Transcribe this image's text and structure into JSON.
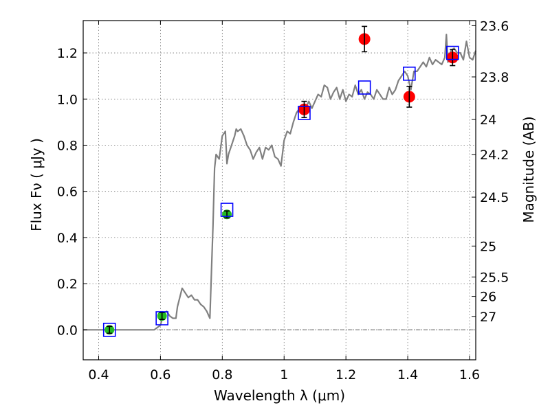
{
  "chart_data": {
    "type": "scatter",
    "xlabel": "Wavelength  λ (μm)",
    "ylabel": "Flux  Fν  ( μJy )",
    "y2label": "Magnitude (AB)",
    "xlim": [
      0.35,
      1.62
    ],
    "ylim": [
      -0.13,
      1.34
    ],
    "grid": true,
    "x_ticks": [
      {
        "value": 0.4,
        "label": "0.4"
      },
      {
        "value": 0.6,
        "label": "0.6"
      },
      {
        "value": 0.8,
        "label": "0.8"
      },
      {
        "value": 1.0,
        "label": "1"
      },
      {
        "value": 1.2,
        "label": "1.2"
      },
      {
        "value": 1.4,
        "label": "1.4"
      },
      {
        "value": 1.6,
        "label": "1.6"
      }
    ],
    "y_ticks": [
      {
        "value": 0.0,
        "label": "0.0"
      },
      {
        "value": 0.2,
        "label": "0.2"
      },
      {
        "value": 0.4,
        "label": "0.4"
      },
      {
        "value": 0.6,
        "label": "0.6"
      },
      {
        "value": 0.8,
        "label": "0.8"
      },
      {
        "value": 1.0,
        "label": "1.0"
      },
      {
        "value": 1.2,
        "label": "1.2"
      }
    ],
    "magnitude_ticks": [
      {
        "flux": 1.318,
        "label": "23.6"
      },
      {
        "flux": 1.096,
        "label": "23.8"
      },
      {
        "flux": 0.912,
        "label": "24"
      },
      {
        "flux": 0.759,
        "label": "24.2"
      },
      {
        "flux": 0.575,
        "label": "24.5"
      },
      {
        "flux": 0.363,
        "label": "25"
      },
      {
        "flux": 0.229,
        "label": "25.5"
      },
      {
        "flux": 0.145,
        "label": "26"
      },
      {
        "flux": 0.058,
        "label": "27"
      }
    ],
    "zero_line": 0.0,
    "colors": {
      "template": "#808080",
      "model_box": "#0000ff",
      "optical": "#22bb22",
      "infrared": "#ff0000",
      "errorbar": "#000000",
      "zero_line": "#555555"
    },
    "series": [
      {
        "kind": "template",
        "x": [
          0.35,
          0.58,
          0.6,
          0.61,
          0.62,
          0.63,
          0.64,
          0.65,
          0.655,
          0.67,
          0.68,
          0.69,
          0.7,
          0.71,
          0.72,
          0.73,
          0.74,
          0.75,
          0.76,
          0.77,
          0.775,
          0.78,
          0.79,
          0.8,
          0.81,
          0.815,
          0.82,
          0.83,
          0.84,
          0.845,
          0.85,
          0.86,
          0.87,
          0.88,
          0.89,
          0.9,
          0.91,
          0.92,
          0.93,
          0.94,
          0.95,
          0.96,
          0.97,
          0.98,
          0.99,
          1.0,
          1.01,
          1.02,
          1.03,
          1.04,
          1.05,
          1.06,
          1.07,
          1.08,
          1.09,
          1.1,
          1.11,
          1.12,
          1.13,
          1.14,
          1.15,
          1.16,
          1.17,
          1.18,
          1.19,
          1.2,
          1.21,
          1.22,
          1.23,
          1.24,
          1.25,
          1.26,
          1.27,
          1.28,
          1.29,
          1.3,
          1.31,
          1.32,
          1.33,
          1.34,
          1.35,
          1.36,
          1.37,
          1.38,
          1.39,
          1.4,
          1.41,
          1.42,
          1.43,
          1.44,
          1.45,
          1.46,
          1.47,
          1.48,
          1.49,
          1.5,
          1.51,
          1.52,
          1.525,
          1.53,
          1.54,
          1.55,
          1.56,
          1.57,
          1.58,
          1.59,
          1.6,
          1.61,
          1.62
        ],
        "y": [
          0.0,
          0.0,
          0.02,
          0.07,
          0.08,
          0.06,
          0.05,
          0.05,
          0.1,
          0.18,
          0.16,
          0.14,
          0.15,
          0.13,
          0.13,
          0.11,
          0.1,
          0.08,
          0.05,
          0.45,
          0.7,
          0.76,
          0.74,
          0.84,
          0.86,
          0.72,
          0.76,
          0.8,
          0.84,
          0.87,
          0.86,
          0.87,
          0.84,
          0.8,
          0.78,
          0.74,
          0.77,
          0.79,
          0.74,
          0.79,
          0.78,
          0.8,
          0.75,
          0.74,
          0.71,
          0.82,
          0.86,
          0.85,
          0.9,
          0.94,
          0.96,
          0.97,
          0.96,
          0.99,
          0.96,
          0.99,
          1.02,
          1.01,
          1.06,
          1.05,
          1.0,
          1.03,
          1.05,
          1.0,
          1.04,
          0.99,
          1.02,
          1.01,
          1.06,
          1.02,
          1.04,
          1.0,
          1.03,
          1.02,
          1.0,
          1.04,
          1.02,
          1.0,
          1.0,
          1.05,
          1.02,
          1.04,
          1.08,
          1.1,
          1.12,
          1.1,
          1.04,
          1.12,
          1.12,
          1.14,
          1.16,
          1.14,
          1.18,
          1.15,
          1.17,
          1.16,
          1.15,
          1.18,
          1.28,
          1.16,
          1.21,
          1.22,
          1.2,
          1.2,
          1.17,
          1.25,
          1.18,
          1.17,
          1.21
        ]
      },
      {
        "kind": "model_box",
        "x": [
          0.435,
          0.605,
          0.815,
          1.065,
          1.26,
          1.405,
          1.545
        ],
        "y": [
          0.0,
          0.05,
          0.52,
          0.94,
          1.05,
          1.11,
          1.2
        ]
      },
      {
        "kind": "optical",
        "x": [
          0.435,
          0.605,
          0.815
        ],
        "y": [
          0.0,
          0.06,
          0.5
        ],
        "err": [
          0.015,
          0.015,
          0.015
        ]
      },
      {
        "kind": "infrared",
        "x": [
          1.065,
          1.26,
          1.405,
          1.545
        ],
        "y": [
          0.955,
          1.26,
          1.01,
          1.18
        ],
        "err": [
          0.035,
          0.055,
          0.045,
          0.035
        ]
      }
    ]
  }
}
